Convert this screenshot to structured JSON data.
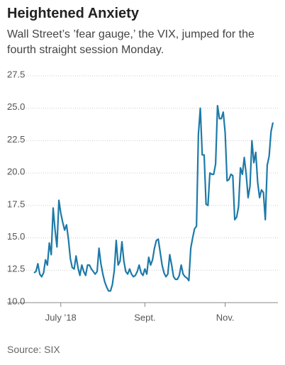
{
  "chart_data": {
    "type": "line",
    "title": "Heightened Anxiety",
    "subtitle": "Wall Street’s ’fear gauge,’ the VIX, jumped for the fourth straight session Monday.",
    "source": "Source: SIX",
    "categories": [
      null,
      null,
      null,
      null,
      null,
      null,
      null,
      null,
      null,
      null,
      null,
      null,
      null,
      null,
      "July ’18",
      null,
      null,
      null,
      null,
      null,
      null,
      null,
      null,
      null,
      null,
      null,
      null,
      null,
      null,
      null,
      null,
      null,
      null,
      null,
      null,
      null,
      null,
      null,
      null,
      null,
      null,
      null,
      null,
      null,
      null,
      null,
      null,
      null,
      null,
      null,
      null,
      null,
      null,
      null,
      null,
      null,
      null,
      null,
      "Sept.",
      null,
      null,
      null,
      null,
      null,
      null,
      null,
      null,
      null,
      null,
      null,
      null,
      null,
      null,
      null,
      null,
      null,
      null,
      null,
      null,
      null,
      null,
      null,
      null,
      null,
      null,
      null,
      null,
      null,
      null,
      null,
      null,
      null,
      null,
      null,
      null,
      null,
      null,
      null,
      null,
      null,
      "Nov.",
      null,
      null,
      null,
      null,
      null,
      null,
      null,
      null,
      null,
      null,
      null,
      null,
      null,
      null,
      null,
      null,
      null,
      null,
      null,
      null,
      null,
      null,
      null,
      null,
      null
    ],
    "series": [
      {
        "name": "VIX",
        "color": "#1d7aa8",
        "values": [
          12.3,
          12.4,
          13.0,
          12.2,
          12.0,
          12.3,
          13.3,
          12.9,
          14.6,
          13.7,
          17.3,
          15.6,
          14.3,
          17.9,
          16.9,
          16.2,
          15.6,
          16.0,
          14.9,
          13.4,
          12.7,
          12.6,
          13.6,
          12.7,
          12.1,
          12.9,
          12.4,
          12.1,
          12.9,
          12.9,
          12.6,
          12.4,
          12.2,
          12.4,
          14.2,
          13.0,
          12.2,
          11.6,
          11.2,
          10.9,
          10.9,
          11.4,
          12.5,
          14.8,
          12.9,
          13.2,
          14.7,
          13.2,
          12.4,
          12.2,
          12.6,
          12.2,
          12.0,
          12.1,
          12.4,
          12.9,
          12.3,
          12.1,
          12.6,
          12.2,
          13.5,
          12.9,
          13.3,
          14.2,
          14.8,
          14.9,
          13.9,
          12.9,
          12.3,
          12.0,
          12.2,
          13.7,
          12.9,
          12.0,
          11.8,
          11.8,
          12.1,
          12.9,
          12.2,
          12.0,
          11.9,
          11.7,
          14.2,
          15.0,
          15.7,
          15.9,
          23.0,
          25.0,
          21.4,
          21.4,
          17.6,
          17.5,
          20.0,
          19.9,
          19.9,
          20.7,
          25.2,
          24.2,
          24.2,
          24.7,
          23.1,
          19.4,
          19.5,
          19.9,
          19.8,
          16.4,
          16.6,
          17.4,
          20.4,
          19.9,
          21.2,
          19.9,
          18.1,
          19.0,
          22.5,
          20.8,
          21.6,
          19.3,
          18.1,
          18.7,
          18.5,
          16.4,
          20.6,
          21.3,
          23.2,
          23.9
        ]
      }
    ],
    "ylim": [
      10,
      27.5
    ],
    "yticks": [
      {
        "value": 10,
        "label": "10.0"
      },
      12.5,
      {
        "value": 15,
        "label": "15.0"
      },
      17.5,
      {
        "value": 20,
        "label": "20.0"
      },
      22.5,
      {
        "value": 25,
        "label": "25.0"
      },
      27.5
    ],
    "grid": true
  }
}
